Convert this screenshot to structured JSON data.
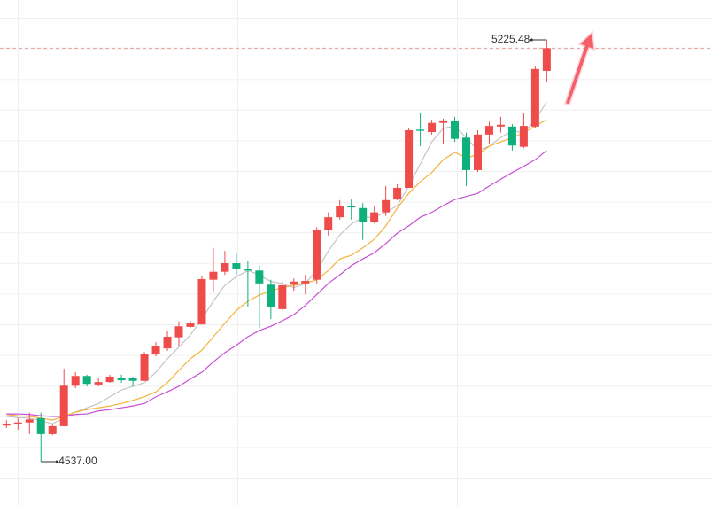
{
  "chart_data": {
    "type": "candlestick",
    "open": [
      4596,
      4598,
      4601,
      4608,
      4582,
      4595,
      4661,
      4677,
      4663,
      4667,
      4674,
      4673,
      4669,
      4712,
      4722,
      4740,
      4757,
      4761,
      4834,
      4847,
      4861,
      4852,
      4849,
      4826,
      4786,
      4826,
      4828,
      4834,
      4915,
      4936,
      4954,
      4951,
      4929,
      4944,
      4965,
      4984,
      5079,
      5075,
      5090,
      5094,
      5066,
      5013,
      5071,
      5084,
      5084,
      5051,
      5084,
      5175
    ],
    "high": [
      4605,
      4608,
      4617,
      4617,
      4598,
      4689,
      4683,
      4679,
      4673,
      4679,
      4679,
      4676,
      4716,
      4732,
      4750,
      4766,
      4767,
      4841,
      4886,
      4881,
      4876,
      4864,
      4857,
      4834,
      4831,
      4836,
      4842,
      4920,
      4944,
      4964,
      4965,
      4959,
      4954,
      4987,
      4990,
      5082,
      5107,
      5095,
      5097,
      5100,
      5074,
      5078,
      5092,
      5100,
      5088,
      5106,
      5182,
      5225.48
    ],
    "low": [
      4592,
      4589,
      4582,
      4537,
      4580,
      4595,
      4657,
      4660,
      4660,
      4666,
      4666,
      4660,
      4669,
      4709,
      4718,
      4725,
      4755,
      4761,
      4813,
      4842,
      4842,
      4789,
      4755,
      4770,
      4784,
      4816,
      4810,
      4828,
      4906,
      4932,
      4932,
      4899,
      4926,
      4938,
      4964,
      4984,
      5052,
      5071,
      5055,
      5059,
      4987,
      5010,
      5056,
      5074,
      5045,
      5049,
      5081,
      5156
    ],
    "close": [
      4599,
      4601,
      4606,
      4582,
      4595,
      4661,
      4677,
      4664,
      4667,
      4676,
      4670,
      4669,
      4712,
      4725,
      4741,
      4758,
      4763,
      4835,
      4847,
      4861,
      4851,
      4849,
      4828,
      4790,
      4825,
      4831,
      4832,
      4915,
      4936,
      4954,
      4952,
      4929,
      4944,
      4964,
      4984,
      5078,
      5077,
      5090,
      5094,
      5064,
      5013,
      5071,
      5085,
      5087,
      5053,
      5085,
      5178,
      5212
    ],
    "up_color": "#ee4b4b",
    "down_color": "#0fb07c",
    "series": [
      {
        "color": "#c4c4c4",
        "values": [
          4611,
          4609,
          4608,
          4604,
          4599,
          4608,
          4618,
          4625,
          4632,
          4643,
          4654,
          4660,
          4666,
          4683,
          4705,
          4724,
          4744,
          4770,
          4799,
          4825,
          4839,
          4849,
          4842,
          4831,
          4828,
          4821,
          4828,
          4849,
          4881,
          4907,
          4925,
          4936,
          4936,
          4944,
          4955,
          4987,
          5023,
          5059,
          5081,
          5085,
          5066,
          5045,
          5052,
          5066,
          5077,
          5074,
          5095,
          5124
        ]
      },
      {
        "color": "#f3b33b",
        "values": [
          4614,
          4612,
          4611,
          4608,
          4605,
          4611,
          4618,
          4622,
          4625,
          4628,
          4632,
          4637,
          4643,
          4651,
          4666,
          4686,
          4705,
          4719,
          4741,
          4763,
          4784,
          4799,
          4809,
          4816,
          4821,
          4825,
          4828,
          4834,
          4849,
          4868,
          4874,
          4886,
          4900,
          4922,
          4951,
          4975,
          4994,
          5009,
          5030,
          5042,
          5033,
          5038,
          5052,
          5059,
          5066,
          5074,
          5085,
          5095
        ]
      },
      {
        "color": "#c64fd4",
        "values": [
          4615,
          4615,
          4614,
          4612,
          4611,
          4611,
          4614,
          4615,
          4620,
          4622,
          4625,
          4628,
          4632,
          4643,
          4651,
          4660,
          4672,
          4683,
          4700,
          4715,
          4727,
          4741,
          4751,
          4758,
          4767,
          4777,
          4792,
          4810,
          4828,
          4842,
          4857,
          4868,
          4878,
          4893,
          4910,
          4922,
          4936,
          4944,
          4955,
          4965,
          4970,
          4975,
          4987,
          4998,
          5009,
          5019,
          5030,
          5045
        ]
      }
    ],
    "ylim": [
      4464.7,
      5290.6
    ],
    "high_label": "5225.48",
    "low_label": "4537.00"
  }
}
